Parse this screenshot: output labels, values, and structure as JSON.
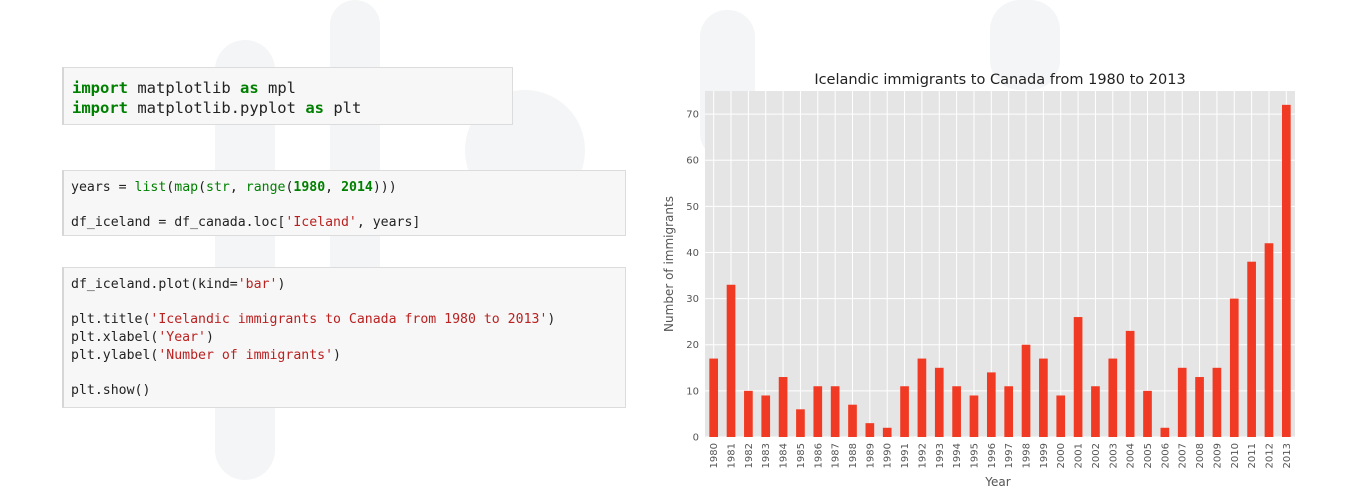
{
  "code_cells": [
    {
      "lines": [
        [
          {
            "t": "import",
            "c": "kw"
          },
          {
            "t": " matplotlib ",
            "c": ""
          },
          {
            "t": "as",
            "c": "kw"
          },
          {
            "t": " mpl",
            "c": ""
          }
        ],
        [
          {
            "t": "import",
            "c": "kw"
          },
          {
            "t": " matplotlib.pyplot ",
            "c": ""
          },
          {
            "t": "as",
            "c": "kw"
          },
          {
            "t": " plt",
            "c": ""
          }
        ]
      ]
    },
    {
      "lines": [
        [
          {
            "t": "years = ",
            "c": ""
          },
          {
            "t": "list",
            "c": "fn"
          },
          {
            "t": "(",
            "c": ""
          },
          {
            "t": "map",
            "c": "fn"
          },
          {
            "t": "(",
            "c": ""
          },
          {
            "t": "str",
            "c": "fn"
          },
          {
            "t": ", ",
            "c": ""
          },
          {
            "t": "range",
            "c": "fn"
          },
          {
            "t": "(",
            "c": ""
          },
          {
            "t": "1980",
            "c": "num"
          },
          {
            "t": ", ",
            "c": ""
          },
          {
            "t": "2014",
            "c": "num"
          },
          {
            "t": ")))",
            "c": ""
          }
        ],
        [],
        [
          {
            "t": "df_iceland = df_canada.loc[",
            "c": ""
          },
          {
            "t": "'Iceland'",
            "c": "str"
          },
          {
            "t": ", years]",
            "c": ""
          }
        ]
      ]
    },
    {
      "lines": [
        [
          {
            "t": "df_iceland.plot(kind=",
            "c": ""
          },
          {
            "t": "'bar'",
            "c": "str"
          },
          {
            "t": ")",
            "c": ""
          }
        ],
        [],
        [
          {
            "t": "plt.title(",
            "c": ""
          },
          {
            "t": "'Icelandic immigrants to Canada from 1980 to 2013'",
            "c": "str"
          },
          {
            "t": ")",
            "c": ""
          }
        ],
        [
          {
            "t": "plt.xlabel(",
            "c": ""
          },
          {
            "t": "'Year'",
            "c": "str"
          },
          {
            "t": ")",
            "c": ""
          }
        ],
        [
          {
            "t": "plt.ylabel(",
            "c": ""
          },
          {
            "t": "'Number of immigrants'",
            "c": "str"
          },
          {
            "t": ")",
            "c": ""
          }
        ],
        [],
        [
          {
            "t": "plt.show()",
            "c": ""
          }
        ]
      ]
    }
  ],
  "chart_data": {
    "type": "bar",
    "title": "Icelandic immigrants to Canada from 1980 to 2013",
    "xlabel": "Year",
    "ylabel": "Number of immigrants",
    "categories": [
      "1980",
      "1981",
      "1982",
      "1983",
      "1984",
      "1985",
      "1986",
      "1987",
      "1988",
      "1989",
      "1990",
      "1991",
      "1992",
      "1993",
      "1994",
      "1995",
      "1996",
      "1997",
      "1998",
      "1999",
      "2000",
      "2001",
      "2002",
      "2003",
      "2004",
      "2005",
      "2006",
      "2007",
      "2008",
      "2009",
      "2010",
      "2011",
      "2012",
      "2013"
    ],
    "values": [
      17,
      33,
      10,
      9,
      13,
      6,
      11,
      11,
      7,
      3,
      2,
      11,
      17,
      15,
      11,
      9,
      14,
      11,
      20,
      17,
      9,
      26,
      11,
      17,
      23,
      10,
      2,
      15,
      13,
      15,
      30,
      38,
      42,
      72
    ],
    "ylim": [
      0,
      75
    ],
    "yticks": [
      0,
      10,
      20,
      30,
      40,
      50,
      60,
      70
    ],
    "grid": true,
    "bar_color": "#f03a23",
    "plot_background": "#e5e5e5",
    "grid_color": "#ffffff"
  }
}
